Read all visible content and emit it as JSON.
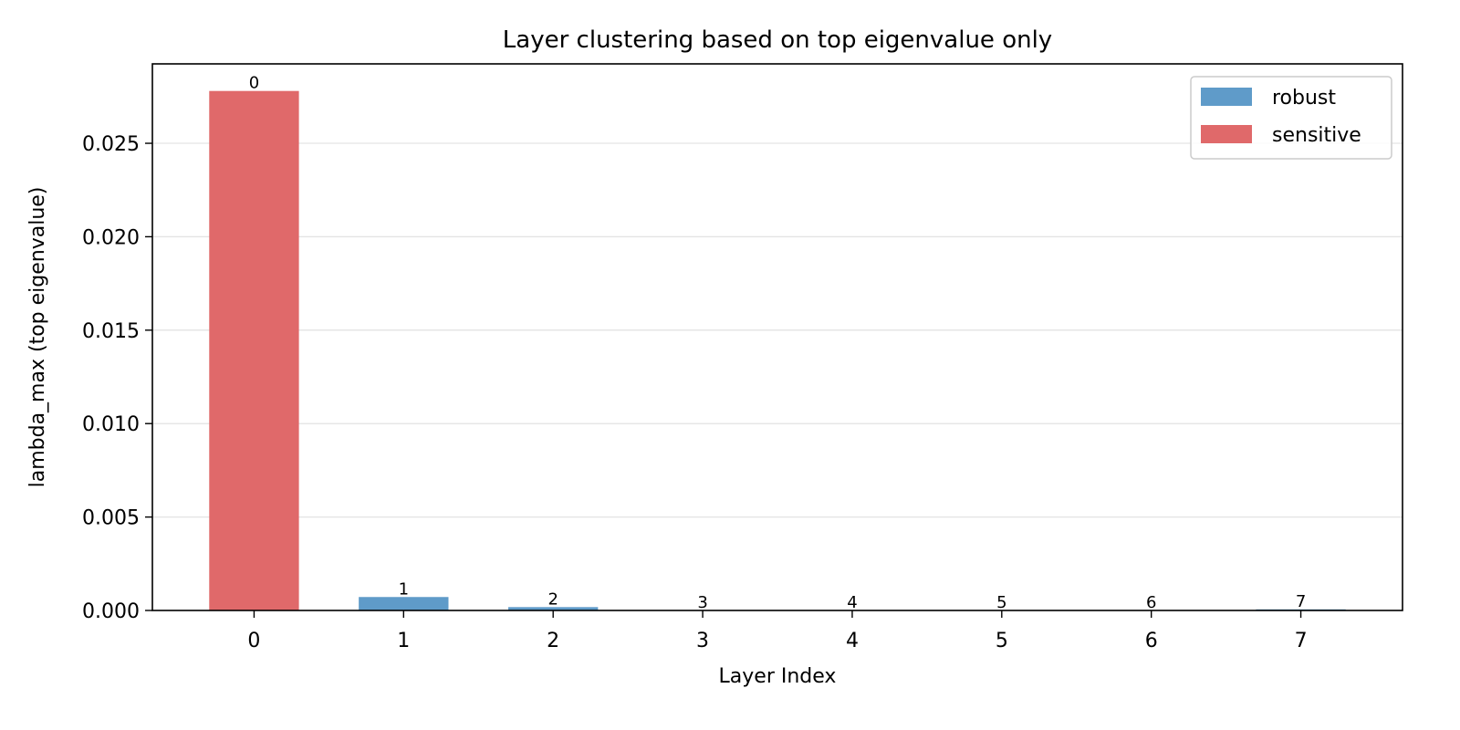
{
  "chart_data": {
    "type": "bar",
    "title": "Layer clustering based on top eigenvalue only",
    "xlabel": "Layer Index",
    "ylabel": "lambda_max (top eigenvalue)",
    "categories": [
      "0",
      "1",
      "2",
      "3",
      "4",
      "5",
      "6",
      "7"
    ],
    "values": [
      0.0278,
      0.00072,
      0.00018,
      1e-05,
      1e-05,
      1e-05,
      1e-05,
      6e-05
    ],
    "bar_labels": [
      "0",
      "1",
      "2",
      "3",
      "4",
      "5",
      "6",
      "7"
    ],
    "clusters": [
      "sensitive",
      "robust",
      "robust",
      "robust",
      "robust",
      "robust",
      "robust",
      "robust"
    ],
    "ylim": [
      0,
      0.02925
    ],
    "yticks": [
      0.0,
      0.005,
      0.01,
      0.015,
      0.02,
      0.025
    ],
    "ytick_labels": [
      "0.000",
      "0.005",
      "0.010",
      "0.015",
      "0.020",
      "0.025"
    ],
    "grid": "horizontal",
    "legend_position": "top-right",
    "legend": [
      {
        "name": "robust",
        "color": "#5f9bc9"
      },
      {
        "name": "sensitive",
        "color": "#e0696a"
      }
    ]
  }
}
